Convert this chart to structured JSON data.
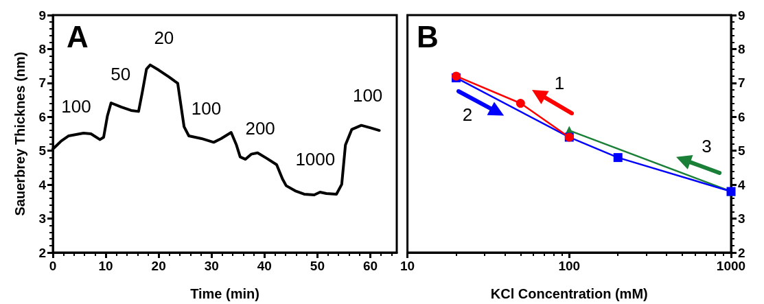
{
  "chart_data": [
    {
      "type": "line",
      "title": "A",
      "xlabel": "Time (min)",
      "ylabel": "Sauerbrey Thicknes (nm)",
      "xlim": [
        0,
        65
      ],
      "xticks": [
        0,
        10,
        20,
        30,
        40,
        50,
        60
      ],
      "ylim": [
        2,
        9
      ],
      "yticks": [
        2,
        3,
        4,
        5,
        6,
        7,
        8,
        9
      ],
      "grid": false,
      "marker": "none",
      "line_style": "solid",
      "series": [
        {
          "color": "#000000",
          "x": [
            0,
            1.6,
            3.0,
            5.8,
            7.2,
            8.9,
            9.6,
            10.3,
            11.0,
            12.9,
            14.8,
            16.2,
            16.9,
            17.7,
            18.4,
            20.0,
            21.9,
            23.6,
            24.0,
            24.8,
            25.7,
            28.1,
            30.4,
            31.8,
            33.7,
            34.7,
            35.4,
            36.4,
            37.5,
            38.7,
            40.4,
            42.3,
            43.4,
            44.1,
            45.8,
            47.5,
            49.4,
            50.5,
            51.7,
            53.6,
            54.6,
            55.3,
            56.5,
            58.3,
            60.2,
            61.7
          ],
          "values": [
            5.05,
            5.29,
            5.44,
            5.52,
            5.5,
            5.33,
            5.4,
            6.02,
            6.41,
            6.29,
            6.19,
            6.16,
            6.72,
            7.41,
            7.53,
            7.38,
            7.18,
            6.99,
            6.56,
            5.71,
            5.44,
            5.36,
            5.25,
            5.36,
            5.54,
            5.17,
            4.82,
            4.75,
            4.9,
            4.94,
            4.78,
            4.59,
            4.17,
            3.97,
            3.82,
            3.72,
            3.7,
            3.78,
            3.74,
            3.72,
            4.01,
            5.17,
            5.63,
            5.75,
            5.67,
            5.6
          ]
        }
      ],
      "annotations": [
        "100",
        "50",
        "20",
        "100",
        "200",
        "1000",
        "100"
      ]
    },
    {
      "type": "line",
      "title": "B",
      "xlabel": "KCl Concentration (mM)",
      "log": "x",
      "xlim": [
        10,
        1000
      ],
      "xticks": [
        10,
        100,
        1000
      ],
      "y2lim": [
        2,
        9
      ],
      "y2ticks": [
        2,
        3,
        4,
        5,
        6,
        7,
        8,
        9
      ],
      "grid": false,
      "line_style": "solid",
      "series": [
        {
          "color": "#1a7f37",
          "marker": "triangle",
          "axis": "y2",
          "x": [
            100,
            1000
          ],
          "values": [
            5.6,
            3.8
          ]
        },
        {
          "color": "#0000ff",
          "marker": "square",
          "axis": "y2",
          "x": [
            20,
            100,
            200,
            1000
          ],
          "values": [
            7.15,
            5.4,
            4.8,
            3.8
          ]
        },
        {
          "color": "#ff0000",
          "marker": "circle",
          "axis": "y2",
          "x": [
            20,
            50,
            100
          ],
          "values": [
            7.2,
            6.4,
            5.4
          ]
        }
      ],
      "annotations": [
        "1",
        "2",
        "3"
      ]
    }
  ]
}
